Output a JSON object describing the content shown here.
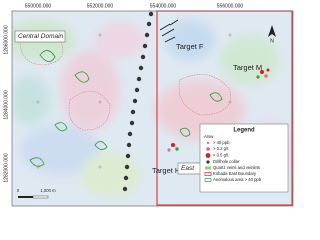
{
  "axis_labels": {
    "top": [
      "550000.000",
      "552000.000",
      "554000.000",
      "556000.000"
    ],
    "left": [
      "1286000.000",
      "1284000.000",
      "1282000.000"
    ]
  },
  "map_labels": {
    "central_domain": "Central Domain",
    "target_f": "Target F",
    "target_m": "Target M",
    "target_h": "Target H",
    "east_domain": "East"
  },
  "legend": {
    "title": "Legend",
    "section": "Arsw",
    "items": [
      "> 40 ppb",
      "> 0.2 g/t",
      "> 0.5 g/t",
      "Drillhole collar",
      "Quartz veins and veinlets",
      "Kobada East Boundary",
      "Anomalous area > 40 ppb"
    ]
  },
  "scale_bar": {
    "zero": "0",
    "label": "1,000 m"
  },
  "north_arrow": "N"
}
